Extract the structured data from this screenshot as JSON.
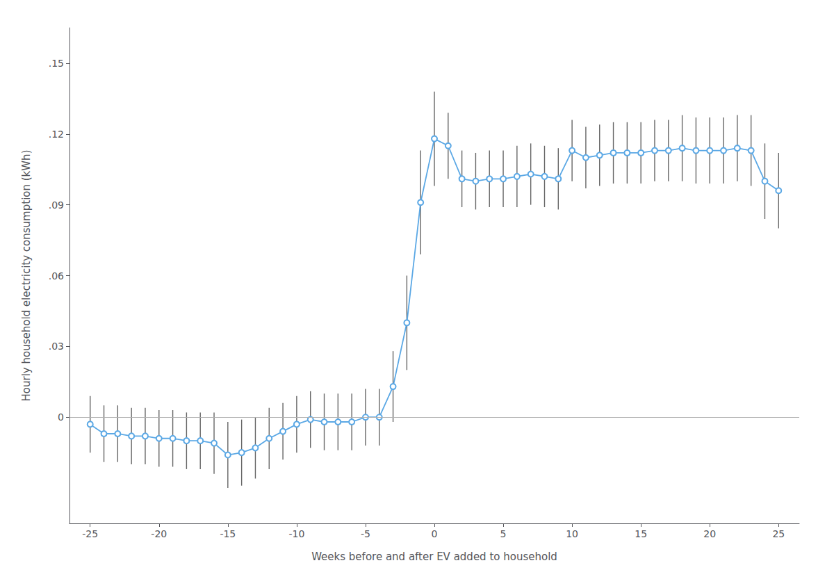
{
  "chart_data": {
    "type": "line",
    "xlabel": "Weeks before and after EV added to household",
    "ylabel": "Hourly household electricity consumption (kWh)",
    "x": [
      -25,
      -24,
      -23,
      -22,
      -21,
      -20,
      -19,
      -18,
      -17,
      -16,
      -15,
      -14,
      -13,
      -12,
      -11,
      -10,
      -9,
      -8,
      -7,
      -6,
      -5,
      -4,
      -3,
      -2,
      -1,
      0,
      1,
      2,
      3,
      4,
      5,
      6,
      7,
      8,
      9,
      10,
      11,
      12,
      13,
      14,
      15,
      16,
      17,
      18,
      19,
      20,
      21,
      22,
      23,
      24,
      25
    ],
    "values": [
      -0.003,
      -0.007,
      -0.007,
      -0.008,
      -0.008,
      -0.009,
      -0.009,
      -0.01,
      -0.01,
      -0.011,
      -0.016,
      -0.015,
      -0.013,
      -0.009,
      -0.006,
      -0.003,
      -0.001,
      -0.002,
      -0.002,
      -0.002,
      0.0,
      0.0,
      0.013,
      0.04,
      0.091,
      0.118,
      0.115,
      0.101,
      0.1,
      0.101,
      0.101,
      0.102,
      0.103,
      0.102,
      0.101,
      0.113,
      0.11,
      0.111,
      0.112,
      0.112,
      0.112,
      0.113,
      0.113,
      0.114,
      0.113,
      0.113,
      0.113,
      0.114,
      0.113,
      0.1,
      0.096
    ],
    "error": {
      "lower": [
        0.012,
        0.012,
        0.012,
        0.012,
        0.012,
        0.012,
        0.012,
        0.012,
        0.012,
        0.013,
        0.014,
        0.014,
        0.013,
        0.013,
        0.012,
        0.012,
        0.012,
        0.012,
        0.012,
        0.012,
        0.012,
        0.012,
        0.015,
        0.02,
        0.022,
        0.02,
        0.014,
        0.012,
        0.012,
        0.012,
        0.012,
        0.013,
        0.013,
        0.013,
        0.013,
        0.013,
        0.013,
        0.013,
        0.013,
        0.013,
        0.013,
        0.013,
        0.013,
        0.014,
        0.014,
        0.014,
        0.014,
        0.014,
        0.015,
        0.016,
        0.016
      ],
      "upper": [
        0.012,
        0.012,
        0.012,
        0.012,
        0.012,
        0.012,
        0.012,
        0.012,
        0.012,
        0.013,
        0.014,
        0.014,
        0.013,
        0.013,
        0.012,
        0.012,
        0.012,
        0.012,
        0.012,
        0.012,
        0.012,
        0.012,
        0.015,
        0.02,
        0.022,
        0.02,
        0.014,
        0.012,
        0.012,
        0.012,
        0.012,
        0.013,
        0.013,
        0.013,
        0.013,
        0.013,
        0.013,
        0.013,
        0.013,
        0.013,
        0.013,
        0.013,
        0.013,
        0.014,
        0.014,
        0.014,
        0.014,
        0.014,
        0.015,
        0.016,
        0.016
      ],
      "color": "#666666"
    },
    "reference_line": {
      "y": 0,
      "color": "#b0b0b0"
    },
    "color": "#5ba8e5",
    "marker": "emptyCircle",
    "xlim": [
      -26.5,
      26.5
    ],
    "xticks": [
      -25,
      -20,
      -15,
      -10,
      -5,
      0,
      5,
      10,
      15,
      20,
      25
    ],
    "ylim": [
      -0.045,
      0.165
    ],
    "yticks": [
      0,
      {
        "value": 0.03,
        "label": ".03"
      },
      {
        "value": 0.06,
        "label": ".06"
      },
      {
        "value": 0.09,
        "label": ".09"
      },
      {
        "value": 0.12,
        "label": ".12"
      },
      {
        "value": 0.15,
        "label": ".15"
      }
    ],
    "grid": false
  }
}
